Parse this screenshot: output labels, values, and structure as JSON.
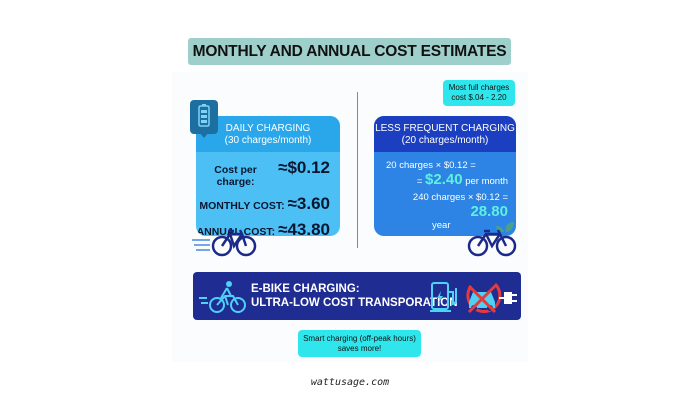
{
  "title": "MONTHLY AND ANNUAL COST ESTIMATES",
  "badge": {
    "line1": "Most full charges",
    "line2": "cost $.04 - 2.20"
  },
  "daily": {
    "title": "DAILY CHARGING",
    "subtitle": "(30 charges/month)",
    "rows": [
      {
        "label": "Cost per charge:",
        "value": "≈$0.12"
      },
      {
        "label": "MONTHLY COST:",
        "value": "≈3.60"
      },
      {
        "label": "ANNUAL COST:",
        "value": "≈43.80"
      }
    ]
  },
  "less": {
    "title": "LESS FREQUENT CHARGING",
    "subtitle": "(20 charges/month)",
    "line1": "20 charges × $0.12 =",
    "line2_prefix": "= ",
    "line2_value": "$2.40",
    "line2_suffix": " per month",
    "line3": "240 charges × $0.12 = ",
    "line3_value": "28.80",
    "line4": "year"
  },
  "banner": {
    "line1": "E-BIKE CHARGING:",
    "line2": "ULTRA-LOW COST TRANSPORATION"
  },
  "note": {
    "line1": "Smart charging (off-peak hours)",
    "line2": "saves more!"
  },
  "footer": "wattusage.com",
  "colors": {
    "title_bg": "#9fcfcb",
    "daily": "#4cc0f5",
    "less": "#2d84e4",
    "banner": "#1f2c92",
    "accent": "#2fe6ec"
  }
}
